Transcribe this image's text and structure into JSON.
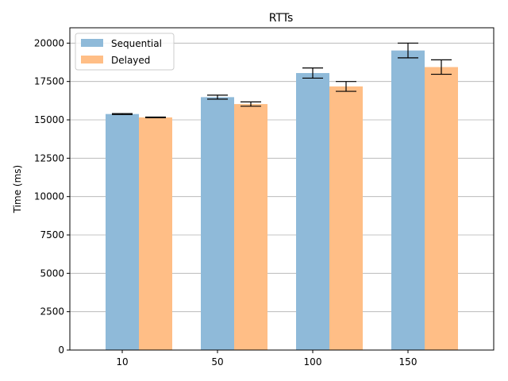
{
  "chart_data": {
    "type": "bar",
    "title": "RTTs",
    "xlabel": "",
    "ylabel": "Time (ms)",
    "categories": [
      "10",
      "50",
      "100",
      "150"
    ],
    "series": [
      {
        "name": "Sequential",
        "color": "#8fbad9",
        "values": [
          15380,
          16480,
          18050,
          19520
        ],
        "errors": [
          30,
          130,
          330,
          480
        ]
      },
      {
        "name": "Delayed",
        "color": "#ffbe86",
        "values": [
          15160,
          16030,
          17180,
          18440
        ],
        "errors": [
          20,
          140,
          320,
          470
        ]
      }
    ],
    "ylim": [
      0,
      21000
    ],
    "yticks": [
      0,
      2500,
      5000,
      7500,
      10000,
      12500,
      15000,
      17500,
      20000
    ],
    "grid": "y",
    "legend": "top-left",
    "error_bars": true
  }
}
